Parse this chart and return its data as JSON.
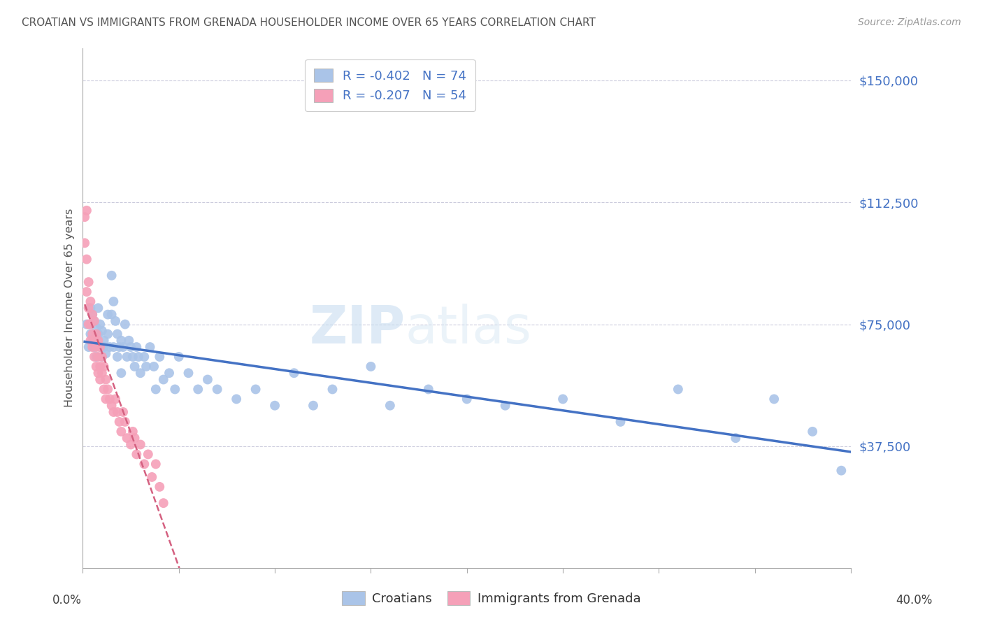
{
  "title": "CROATIAN VS IMMIGRANTS FROM GRENADA HOUSEHOLDER INCOME OVER 65 YEARS CORRELATION CHART",
  "source": "Source: ZipAtlas.com",
  "ylabel": "Householder Income Over 65 years",
  "watermark_zip": "ZIP",
  "watermark_atlas": "atlas",
  "ytick_labels": [
    "$37,500",
    "$75,000",
    "$112,500",
    "$150,000"
  ],
  "ytick_values": [
    37500,
    75000,
    112500,
    150000
  ],
  "ymin": 0,
  "ymax": 160000,
  "xmin": 0.0,
  "xmax": 0.4,
  "legend_line1": "R = -0.402   N = 74",
  "legend_line2": "R = -0.207   N = 54",
  "croatian_color": "#aac4e8",
  "grenada_color": "#f5a0b8",
  "trendline_croatian_color": "#4472c4",
  "trendline_grenada_color": "#d46080",
  "legend_text_color": "#4472c4",
  "title_color": "#555555",
  "source_color": "#999999",
  "yaxis_label_color": "#555555",
  "grid_color": "#ccccdd",
  "background_color": "#ffffff",
  "croatians_x": [
    0.002,
    0.003,
    0.004,
    0.004,
    0.005,
    0.005,
    0.006,
    0.006,
    0.007,
    0.007,
    0.008,
    0.008,
    0.009,
    0.009,
    0.01,
    0.01,
    0.011,
    0.011,
    0.012,
    0.013,
    0.013,
    0.014,
    0.015,
    0.015,
    0.016,
    0.016,
    0.017,
    0.018,
    0.018,
    0.019,
    0.02,
    0.02,
    0.021,
    0.022,
    0.023,
    0.024,
    0.025,
    0.026,
    0.027,
    0.028,
    0.029,
    0.03,
    0.032,
    0.033,
    0.035,
    0.037,
    0.038,
    0.04,
    0.042,
    0.045,
    0.048,
    0.05,
    0.055,
    0.06,
    0.065,
    0.07,
    0.08,
    0.09,
    0.1,
    0.11,
    0.12,
    0.13,
    0.15,
    0.16,
    0.18,
    0.2,
    0.22,
    0.25,
    0.28,
    0.31,
    0.34,
    0.36,
    0.38,
    0.395
  ],
  "croatians_y": [
    75000,
    68000,
    80000,
    72000,
    78000,
    70000,
    76000,
    68000,
    74000,
    65000,
    72000,
    80000,
    68000,
    75000,
    73000,
    65000,
    70000,
    68000,
    66000,
    78000,
    72000,
    68000,
    90000,
    78000,
    82000,
    68000,
    76000,
    72000,
    65000,
    68000,
    70000,
    60000,
    68000,
    75000,
    65000,
    70000,
    68000,
    65000,
    62000,
    68000,
    65000,
    60000,
    65000,
    62000,
    68000,
    62000,
    55000,
    65000,
    58000,
    60000,
    55000,
    65000,
    60000,
    55000,
    58000,
    55000,
    52000,
    55000,
    50000,
    60000,
    50000,
    55000,
    62000,
    50000,
    55000,
    52000,
    50000,
    52000,
    45000,
    55000,
    40000,
    52000,
    42000,
    30000
  ],
  "grenada_x": [
    0.001,
    0.001,
    0.002,
    0.002,
    0.002,
    0.003,
    0.003,
    0.003,
    0.004,
    0.004,
    0.004,
    0.005,
    0.005,
    0.005,
    0.006,
    0.006,
    0.006,
    0.007,
    0.007,
    0.007,
    0.008,
    0.008,
    0.008,
    0.009,
    0.009,
    0.009,
    0.01,
    0.01,
    0.011,
    0.011,
    0.012,
    0.012,
    0.013,
    0.014,
    0.015,
    0.016,
    0.017,
    0.018,
    0.019,
    0.02,
    0.021,
    0.022,
    0.023,
    0.025,
    0.026,
    0.027,
    0.028,
    0.03,
    0.032,
    0.034,
    0.036,
    0.038,
    0.04,
    0.042
  ],
  "grenada_y": [
    108000,
    100000,
    95000,
    110000,
    85000,
    80000,
    88000,
    75000,
    82000,
    75000,
    70000,
    78000,
    72000,
    68000,
    76000,
    70000,
    65000,
    72000,
    68000,
    62000,
    70000,
    65000,
    60000,
    68000,
    62000,
    58000,
    65000,
    60000,
    62000,
    55000,
    58000,
    52000,
    55000,
    52000,
    50000,
    48000,
    52000,
    48000,
    45000,
    42000,
    48000,
    45000,
    40000,
    38000,
    42000,
    40000,
    35000,
    38000,
    32000,
    35000,
    28000,
    32000,
    25000,
    20000
  ]
}
